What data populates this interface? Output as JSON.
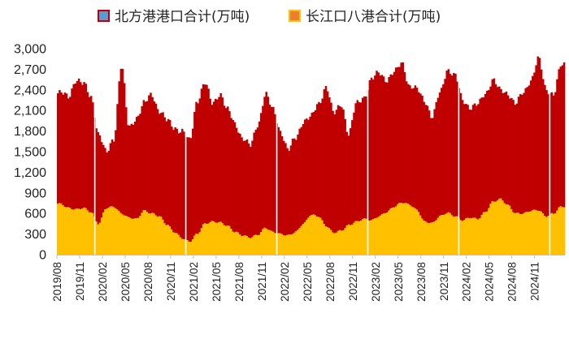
{
  "chart_data": {
    "type": "bar",
    "stacked": true,
    "ylim": [
      0,
      3000
    ],
    "yticks": [
      "0",
      "300",
      "600",
      "900",
      "1,200",
      "1,500",
      "1,800",
      "2,100",
      "2,400",
      "2,700",
      "3,000"
    ],
    "ytick_values": [
      0,
      300,
      600,
      900,
      1200,
      1500,
      1800,
      2100,
      2400,
      2700,
      3000
    ],
    "x_start": "2019-08",
    "x_end": "2025-02",
    "xticks": [
      "2019/08",
      "2019/11",
      "2020/02",
      "2020/05",
      "2020/08",
      "2020/11",
      "2021/02",
      "2021/05",
      "2021/08",
      "2021/11",
      "2022/02",
      "2022/05",
      "2022/08",
      "2022/11",
      "2023/02",
      "2023/05",
      "2023/08",
      "2023/11",
      "2024/02",
      "2024/05",
      "2024/08",
      "2024/11"
    ],
    "gridlines": false,
    "legend_position": "top",
    "series": [
      {
        "name": "北方港港口合计(万吨)",
        "color": "#C00000",
        "legend_swatch": "#5B9BD5",
        "total_keyframes": [
          [
            "2019-08",
            2350
          ],
          [
            "2019-09",
            2300
          ],
          [
            "2019-10",
            2550
          ],
          [
            "2019-11",
            2480
          ],
          [
            "2019-12",
            2300
          ],
          [
            "2020-01",
            1750
          ],
          [
            "2020-02",
            1480
          ],
          [
            "2020-03",
            1700
          ],
          [
            "2020-04",
            2750
          ],
          [
            "2020-05",
            1850
          ],
          [
            "2020-06",
            2000
          ],
          [
            "2020-07",
            2200
          ],
          [
            "2020-08",
            2330
          ],
          [
            "2020-09",
            2100
          ],
          [
            "2020-10",
            1950
          ],
          [
            "2020-11",
            1850
          ],
          [
            "2020-12",
            1800
          ],
          [
            "2021-01",
            1650
          ],
          [
            "2021-02",
            2250
          ],
          [
            "2021-03",
            2500
          ],
          [
            "2021-04",
            2200
          ],
          [
            "2021-05",
            2350
          ],
          [
            "2021-06",
            2100
          ],
          [
            "2021-07",
            1900
          ],
          [
            "2021-08",
            1700
          ],
          [
            "2021-09",
            1580
          ],
          [
            "2021-10",
            1900
          ],
          [
            "2021-11",
            2340
          ],
          [
            "2021-12",
            2100
          ],
          [
            "2022-01",
            1800
          ],
          [
            "2022-02",
            1520
          ],
          [
            "2022-03",
            1700
          ],
          [
            "2022-04",
            1950
          ],
          [
            "2022-05",
            2000
          ],
          [
            "2022-06",
            2200
          ],
          [
            "2022-07",
            2450
          ],
          [
            "2022-08",
            2050
          ],
          [
            "2022-09",
            2200
          ],
          [
            "2022-10",
            1750
          ],
          [
            "2022-11",
            2200
          ],
          [
            "2022-12",
            2300
          ],
          [
            "2023-01",
            2550
          ],
          [
            "2023-02",
            2650
          ],
          [
            "2023-03",
            2550
          ],
          [
            "2023-04",
            2650
          ],
          [
            "2023-05",
            2800
          ],
          [
            "2023-06",
            2450
          ],
          [
            "2023-07",
            2400
          ],
          [
            "2023-08",
            2250
          ],
          [
            "2023-09",
            2000
          ],
          [
            "2023-10",
            2350
          ],
          [
            "2023-11",
            2700
          ],
          [
            "2023-12",
            2600
          ],
          [
            "2024-01",
            2250
          ],
          [
            "2024-02",
            2150
          ],
          [
            "2024-03",
            2180
          ],
          [
            "2024-04",
            2350
          ],
          [
            "2024-05",
            2550
          ],
          [
            "2024-06",
            2380
          ],
          [
            "2024-07",
            2350
          ],
          [
            "2024-08",
            2200
          ],
          [
            "2024-09",
            2350
          ],
          [
            "2024-10",
            2550
          ],
          [
            "2024-11",
            2850
          ],
          [
            "2024-12",
            2400
          ],
          [
            "2025-01",
            2350
          ],
          [
            "2025-02",
            2750
          ]
        ]
      },
      {
        "name": "长江口八港合计(万吨)",
        "color": "#FFC000",
        "legend_swatch": "#ED7D31",
        "keyframes": [
          [
            "2019-08",
            740
          ],
          [
            "2019-09",
            680
          ],
          [
            "2019-10",
            660
          ],
          [
            "2019-11",
            680
          ],
          [
            "2019-12",
            620
          ],
          [
            "2020-01",
            450
          ],
          [
            "2020-02",
            680
          ],
          [
            "2020-03",
            700
          ],
          [
            "2020-04",
            600
          ],
          [
            "2020-05",
            540
          ],
          [
            "2020-06",
            520
          ],
          [
            "2020-07",
            640
          ],
          [
            "2020-08",
            600
          ],
          [
            "2020-09",
            560
          ],
          [
            "2020-10",
            440
          ],
          [
            "2020-11",
            330
          ],
          [
            "2020-12",
            240
          ],
          [
            "2021-01",
            190
          ],
          [
            "2021-02",
            300
          ],
          [
            "2021-03",
            450
          ],
          [
            "2021-04",
            480
          ],
          [
            "2021-05",
            470
          ],
          [
            "2021-06",
            420
          ],
          [
            "2021-07",
            330
          ],
          [
            "2021-08",
            280
          ],
          [
            "2021-09",
            250
          ],
          [
            "2021-10",
            290
          ],
          [
            "2021-11",
            390
          ],
          [
            "2021-12",
            330
          ],
          [
            "2022-01",
            300
          ],
          [
            "2022-02",
            280
          ],
          [
            "2022-03",
            330
          ],
          [
            "2022-04",
            450
          ],
          [
            "2022-05",
            580
          ],
          [
            "2022-06",
            560
          ],
          [
            "2022-07",
            420
          ],
          [
            "2022-08",
            320
          ],
          [
            "2022-09",
            350
          ],
          [
            "2022-10",
            430
          ],
          [
            "2022-11",
            480
          ],
          [
            "2022-12",
            520
          ],
          [
            "2023-01",
            500
          ],
          [
            "2023-02",
            560
          ],
          [
            "2023-03",
            620
          ],
          [
            "2023-04",
            700
          ],
          [
            "2023-05",
            760
          ],
          [
            "2023-06",
            730
          ],
          [
            "2023-07",
            650
          ],
          [
            "2023-08",
            480
          ],
          [
            "2023-09",
            460
          ],
          [
            "2023-10",
            560
          ],
          [
            "2023-11",
            610
          ],
          [
            "2023-12",
            560
          ],
          [
            "2024-01",
            500
          ],
          [
            "2024-02",
            540
          ],
          [
            "2024-03",
            520
          ],
          [
            "2024-04",
            620
          ],
          [
            "2024-05",
            770
          ],
          [
            "2024-06",
            810
          ],
          [
            "2024-07",
            720
          ],
          [
            "2024-08",
            600
          ],
          [
            "2024-09",
            600
          ],
          [
            "2024-10",
            640
          ],
          [
            "2024-11",
            650
          ],
          [
            "2024-12",
            560
          ],
          [
            "2025-01",
            600
          ],
          [
            "2025-02",
            700
          ]
        ]
      }
    ]
  }
}
